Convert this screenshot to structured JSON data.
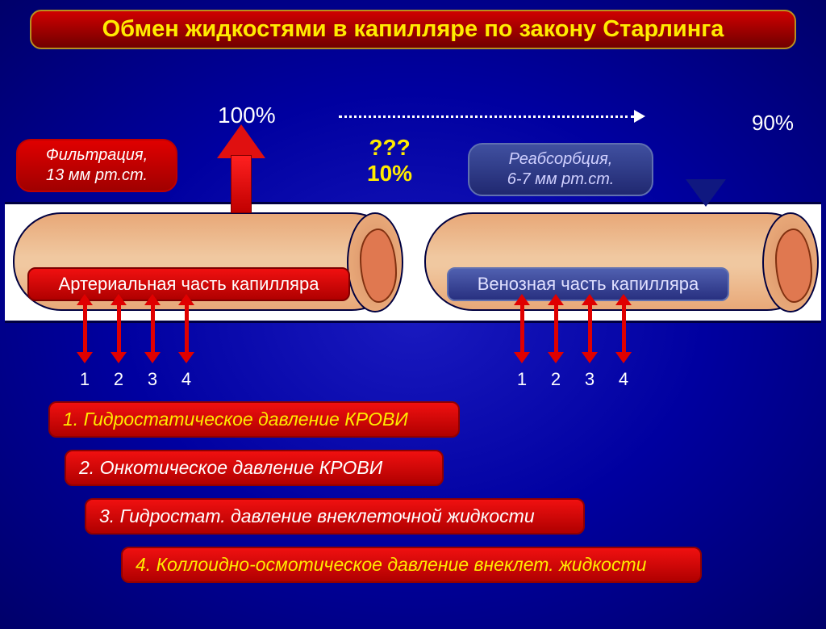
{
  "title": "Обмен жидкостями в капилляре по закону Старлинга",
  "percent_left": "100%",
  "percent_right": "90%",
  "question": "???",
  "question_pct": "10%",
  "filtration": {
    "label": "Фильтрация,",
    "value": "13 мм рт.ст."
  },
  "reabsorption": {
    "label": "Реабсорбция,",
    "value": "6-7 мм рт.ст."
  },
  "capillary": {
    "left_label": "Артериальная часть капилляра",
    "right_label": "Венозная часть капилляра"
  },
  "arrow_nums": [
    "1",
    "2",
    "3",
    "4"
  ],
  "legend": {
    "l1": "1. Гидростатическое давление КРОВИ",
    "l2": "2. Онкотическое давление КРОВИ",
    "l3": "3. Гидростат. давление внеклеточной жидкости",
    "l4": "4. Коллоидно-осмотическое давление внеклет. жидкости"
  },
  "colors": {
    "bg_center": "#1a1ac0",
    "bg_outer": "#00006a",
    "red_grad_top": "#f01010",
    "red_grad_bot": "#b00000",
    "blue_grad_top": "#5060b0",
    "blue_grad_bot": "#283080",
    "yellow": "#ffeb00",
    "white": "#ffffff",
    "capillary_light": "#f0c8a0",
    "capillary_dark": "#e8a878",
    "gold_border": "#b89020"
  }
}
